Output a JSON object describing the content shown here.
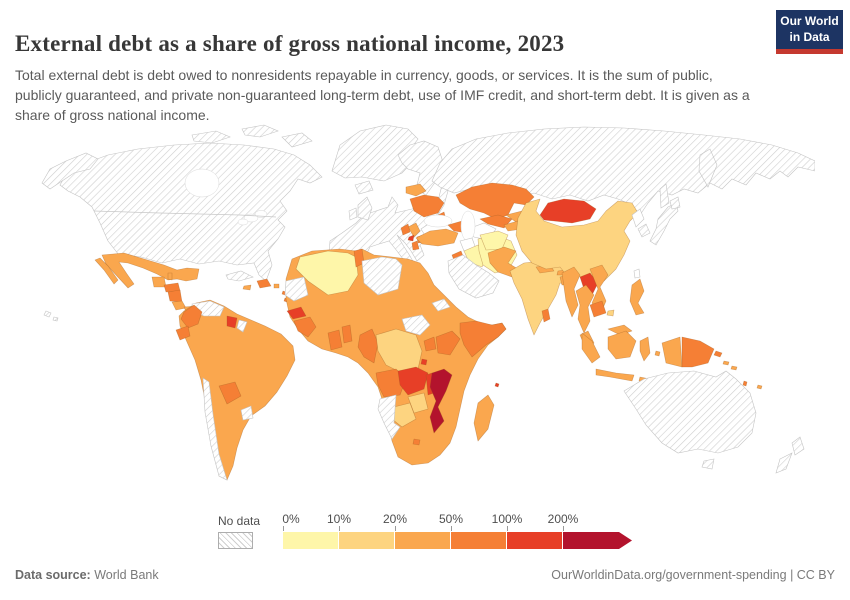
{
  "header": {
    "title": "External debt as a share of gross national income, 2023",
    "logo": {
      "line1": "Our World",
      "line2": "in Data",
      "bg_color": "#1d3463",
      "accent_color": "#c5392f"
    }
  },
  "subtitle": "Total external debt is debt owed to nonresidents repayable in currency, goods, or services. It is the sum of public, publicly guaranteed, and private non-guaranteed long-term debt, use of IMF credit, and short-term debt. It is given as a share of gross national income.",
  "legend": {
    "no_data_label": "No data",
    "tick_labels": [
      "0%",
      "10%",
      "20%",
      "50%",
      "100%",
      "200%"
    ],
    "band_order": [
      "b0",
      "b1",
      "b2",
      "b3",
      "b4",
      "b5"
    ],
    "bands": {
      "b0": "#FEF6A9",
      "b1": "#FDD480",
      "b2": "#FAA74E",
      "b3": "#F57F35",
      "b4": "#E73F27",
      "b5": "#B3132D"
    },
    "segment_width": 56,
    "arrow_width": 13
  },
  "footer": {
    "source_label": "Data source:",
    "source_value": "World Bank",
    "credit": "OurWorldinData.org/government-spending | CC BY"
  },
  "chart_data": {
    "type": "choropleth-world-map",
    "title": "External debt as a share of gross national income",
    "year": 2023,
    "unit": "% of gross national income",
    "color_scale": [
      {
        "label": "No data",
        "style": "gray-diagonal-hatch"
      },
      {
        "range": "0-10%",
        "color": "#FEF6A9"
      },
      {
        "range": "10-20%",
        "color": "#FDD480"
      },
      {
        "range": "20-50%",
        "color": "#FAA74E"
      },
      {
        "range": "50-100%",
        "color": "#F57F35"
      },
      {
        "range": "100-200%",
        "color": "#E73F27"
      },
      {
        "range": "200%+",
        "color": "#B3132D"
      }
    ],
    "countries_by_band": {
      "no_data": [
        "United States",
        "Canada",
        "Greenland",
        "Western Europe",
        "Russia",
        "Saudi Arabia",
        "Libya",
        "Western Sahara",
        "Venezuela",
        "Cuba",
        "Chile",
        "Uruguay",
        "French Guiana",
        "Namibia",
        "South Sudan",
        "Eritrea",
        "Japan",
        "South Korea",
        "Australia",
        "New Zealand",
        "Iceland"
      ],
      "0-10%": [
        "Algeria",
        "Iraq",
        "Iran",
        "Afghanistan"
      ],
      "10-20%": [
        "China",
        "India",
        "DR Congo",
        "Zimbabwe",
        "Botswana"
      ],
      "20-50%": [
        "Mexico",
        "Guatemala",
        "Brazil",
        "Peru",
        "Bolivia",
        "Argentina",
        "Morocco",
        "Egypt",
        "Mali",
        "Niger",
        "Chad",
        "Sudan",
        "Nigeria",
        "Ethiopia",
        "Tanzania",
        "South Africa",
        "Madagascar",
        "Turkey",
        "Belarus",
        "Serbia",
        "Pakistan",
        "Nepal",
        "Bangladesh",
        "Myanmar",
        "Thailand",
        "Vietnam",
        "Malaysia",
        "Indonesia",
        "Philippines",
        "Fiji"
      ],
      "50-100%": [
        "Colombia",
        "Ecuador",
        "Paraguay",
        "Honduras",
        "Nicaragua",
        "Dominican Republic",
        "Tunisia",
        "Guinea",
        "Ghana",
        "Cameroon",
        "Angola",
        "Kenya",
        "Uganda",
        "Somalia",
        "Ukraine",
        "Albania",
        "North Macedonia",
        "Georgia",
        "Jordan",
        "Kazakhstan",
        "Uzbekistan",
        "Cambodia",
        "Sri Lanka",
        "Papua New Guinea"
      ],
      "100-200%": [
        "Senegal",
        "Zambia",
        "Malawi",
        "Burundi",
        "Suriname",
        "Montenegro",
        "Mongolia",
        "Laos"
      ],
      "over_200%": [
        "Mozambique"
      ]
    }
  },
  "map": {
    "region_bands": {
      "canada-usa": "no_data",
      "alaska": "no_data",
      "arctic-islands": "no_data",
      "greenland": "no_data",
      "iceland": "no_data",
      "hawaii": "no_data",
      "cuba": "no_data",
      "mexico": "b2",
      "guatemala": "b2",
      "belize": "b2",
      "honduras": "b3",
      "nicaragua": "b3",
      "costa-rica": "b2",
      "panama": "b2",
      "hispaniola": "b3",
      "jamaica": "b2",
      "puerto-rico": "b2",
      "antilles": "b3",
      "south-america": "b2",
      "venezuela": "no_data",
      "colombia": "b3",
      "ecuador": "b3",
      "suriname": "b4",
      "french-guiana": "no_data",
      "paraguay": "b3",
      "uruguay": "no_data",
      "chile": "no_data",
      "europe": "no_data",
      "scandinavia": "no_data",
      "uk": "no_data",
      "ireland": "no_data",
      "ukraine": "b3",
      "belarus": "b2",
      "moldova": "b3",
      "serbia": "b2",
      "bosnia": "b3",
      "montenegro": "b4",
      "albania": "b3",
      "macedonia": "b3",
      "russia": "no_data",
      "kamchatka": "no_data",
      "sakhalin": "no_data",
      "turkey": "b2",
      "caucasus": "b3",
      "syria": "none",
      "jordan": "b3",
      "iraq": "b0",
      "iran": "b0",
      "saudi-peninsula": "no_data",
      "kazakhstan": "b3",
      "turkmenistan": "none",
      "uzbekistan": "b3",
      "kyrgyzstan": "b2",
      "tajikistan": "b2",
      "afghanistan": "b0",
      "pakistan": "b2",
      "india": "b1",
      "nepal": "b2",
      "bhutan": "b2",
      "bangladesh": "b2",
      "sri-lanka": "b3",
      "china": "b1",
      "mongolia": "b4",
      "north-korea": "none",
      "south-korea": "no_data",
      "japan": "no_data",
      "taiwan": "none",
      "hainan": "b1",
      "myanmar": "b2",
      "laos": "b4",
      "vietnam": "b2",
      "thailand": "b2",
      "cambodia": "b3",
      "malaysia": "b2",
      "indonesia": "b2",
      "west-papua": "b2",
      "png": "b3",
      "philippines": "b2",
      "solomon": "b2",
      "vanuatu": "b3",
      "fiji": "b2",
      "new-caledonia": "no_data",
      "australia": "no_data",
      "new-zealand": "no_data",
      "africa": "b2",
      "western-sahara": "no_data",
      "algeria": "b0",
      "tunisia": "b3",
      "libya": "no_data",
      "senegal": "b4",
      "guinea": "b3",
      "ghana": "b3",
      "benin-togo": "b3",
      "cameroon-congo": "b3",
      "drc": "b1",
      "uganda": "b3",
      "kenya": "b3",
      "somalia": "b3",
      "south-sudan": "no_data",
      "eritrea": "no_data",
      "burundi": "b4",
      "angola": "b3",
      "zambia": "b4",
      "mozambique": "b5",
      "zimbabwe": "b1",
      "botswana": "b1",
      "namibia": "no_data",
      "lesotho": "b3",
      "madagascar": "b2",
      "comoros": "b4"
    }
  }
}
